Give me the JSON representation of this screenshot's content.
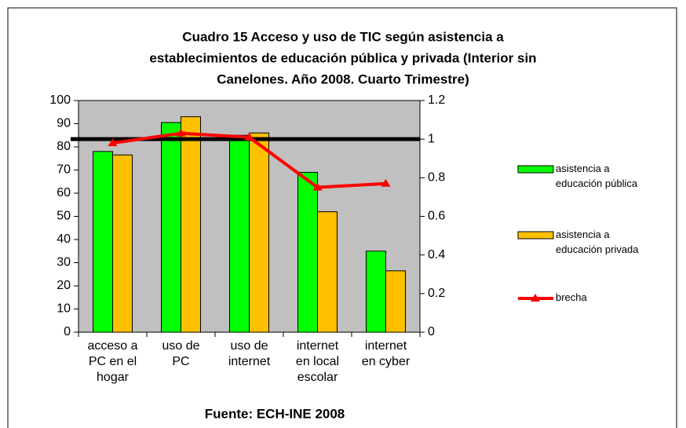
{
  "chart_data": {
    "type": "bar_line",
    "title": [
      "Cuadro 15 Acceso  y uso de TIC según asistencia a",
      "establecimientos de educación pública y privada (Interior sin",
      "Canelones. Año 2008.  Cuarto Trimestre)"
    ],
    "source": "Fuente: ECH-INE 2008",
    "categories": [
      "acceso a\nPC en el\nhogar",
      "uso de\nPC",
      "uso de\ninternet",
      "internet\nen local\nescolar",
      "internet\nen cyber"
    ],
    "series": [
      {
        "name": "asistencia a\neducación pública",
        "color": "#00ff00",
        "type": "bar",
        "values": [
          78,
          90.5,
          85,
          69,
          35
        ]
      },
      {
        "name": "asistencia a\neducación privada",
        "color": "#ffc000",
        "type": "bar",
        "values": [
          76.5,
          93,
          86,
          52,
          26.5
        ]
      },
      {
        "name": "brecha",
        "color": "#ff0000",
        "type": "line",
        "axis": "y2",
        "values": [
          0.98,
          1.03,
          1.01,
          0.75,
          0.77
        ]
      }
    ],
    "reference_line": {
      "axis": "y2",
      "value": 1,
      "color": "#000000"
    },
    "ylim": [
      0,
      100
    ],
    "yticks": [
      0,
      10,
      20,
      30,
      40,
      50,
      60,
      70,
      80,
      90,
      100
    ],
    "y2lim": [
      0,
      1.2
    ],
    "y2ticks": [
      0,
      0.2,
      0.4,
      0.6,
      0.8,
      1,
      1.2
    ],
    "plot_background": "#c0c0c0"
  }
}
